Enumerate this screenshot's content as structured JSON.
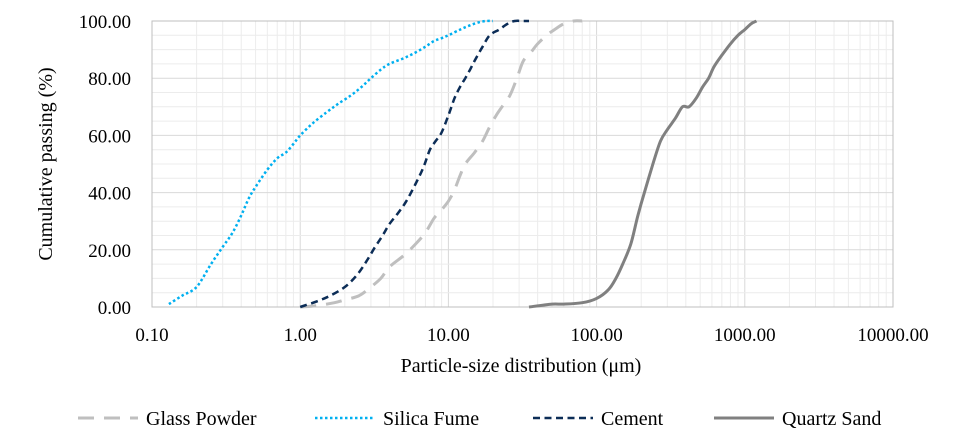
{
  "chart_data": {
    "type": "line",
    "title": "",
    "xlabel": "Particle-size  distribution  (μm)",
    "ylabel": "Cumulative  passing  (%)",
    "x_scale": "log",
    "xlim": [
      0.1,
      10000
    ],
    "ylim": [
      0,
      100
    ],
    "x_ticks": [
      0.1,
      1,
      10,
      100,
      1000,
      10000
    ],
    "x_tick_labels": [
      "0.10",
      "1.00",
      "10.00",
      "100.00",
      "1000.00",
      "10000.00"
    ],
    "y_ticks": [
      0,
      20,
      40,
      60,
      80,
      100
    ],
    "y_tick_labels": [
      "0.00",
      "20.00",
      "40.00",
      "60.00",
      "80.00",
      "100.00"
    ],
    "grid": true,
    "legend_position": "bottom",
    "series": [
      {
        "name": "Glass Powder",
        "color": "#bfbfbf",
        "dash": "long-dash",
        "x": [
          1.0,
          1.3,
          1.7,
          2.0,
          2.5,
          3.0,
          3.5,
          4.0,
          5.0,
          6.0,
          7.0,
          8.0,
          9.0,
          10.0,
          11.0,
          12.0,
          13.0,
          15.0,
          17.0,
          19.0,
          21.0,
          23.0,
          26.0,
          29.0,
          32.0,
          36.0,
          40.0,
          46.0,
          52.0,
          60.0,
          70.0,
          80.0
        ],
        "y": [
          0,
          0.5,
          1.5,
          2.5,
          4,
          7,
          10,
          14,
          18,
          22,
          26,
          31,
          34,
          37,
          41,
          46,
          50,
          54,
          58,
          63,
          67,
          70,
          74,
          80,
          86,
          89,
          92,
          95,
          97,
          99,
          100,
          100
        ]
      },
      {
        "name": "Silica Fume",
        "color": "#00b0f0",
        "dash": "dotted",
        "x": [
          0.13,
          0.16,
          0.2,
          0.25,
          0.3,
          0.35,
          0.4,
          0.45,
          0.5,
          0.6,
          0.7,
          0.8,
          0.9,
          1.0,
          1.2,
          1.5,
          1.8,
          2.2,
          2.6,
          3.0,
          3.5,
          4.0,
          5.0,
          6.0,
          7.0,
          8.0,
          9.0,
          10.0,
          12.0,
          14.0,
          16.0,
          18.0,
          20.0
        ],
        "y": [
          1,
          4,
          7,
          15,
          21,
          26,
          32,
          38,
          42,
          48,
          52,
          54,
          57,
          60,
          64,
          68,
          71,
          74,
          77,
          80,
          83,
          85,
          87,
          89,
          91,
          93,
          94,
          95,
          97,
          98.5,
          99.5,
          100,
          100
        ]
      },
      {
        "name": "Cement",
        "color": "#0c2d57",
        "dash": "dashed",
        "x": [
          1.0,
          1.3,
          1.6,
          2.0,
          2.4,
          2.8,
          3.2,
          3.6,
          4.0,
          4.6,
          5.2,
          6.0,
          6.8,
          7.5,
          8.2,
          9.0,
          10.0,
          11.0,
          12.0,
          13.0,
          14.0,
          15.0,
          17.0,
          19.0,
          22.0,
          25.0,
          28.0,
          32.0,
          35.0
        ],
        "y": [
          0,
          2,
          4,
          7,
          11,
          16,
          21,
          25,
          29,
          33,
          37,
          43,
          49,
          55,
          58,
          61,
          67,
          73,
          77,
          80,
          83,
          86,
          91,
          95,
          97,
          99,
          100,
          100,
          100
        ]
      },
      {
        "name": "Quartz Sand",
        "color": "#808080",
        "dash": "solid",
        "x": [
          35,
          50,
          60,
          80,
          100,
          120,
          135,
          150,
          170,
          190,
          210,
          240,
          270,
          300,
          340,
          380,
          420,
          470,
          520,
          570,
          620,
          700,
          800,
          900,
          1000,
          1100,
          1200
        ],
        "y": [
          0,
          1,
          1,
          1.5,
          3,
          6,
          10,
          15,
          22,
          32,
          40,
          50,
          58,
          62,
          66,
          70,
          70,
          73,
          77,
          80,
          84,
          88,
          92,
          95,
          97,
          99,
          100
        ]
      }
    ]
  }
}
